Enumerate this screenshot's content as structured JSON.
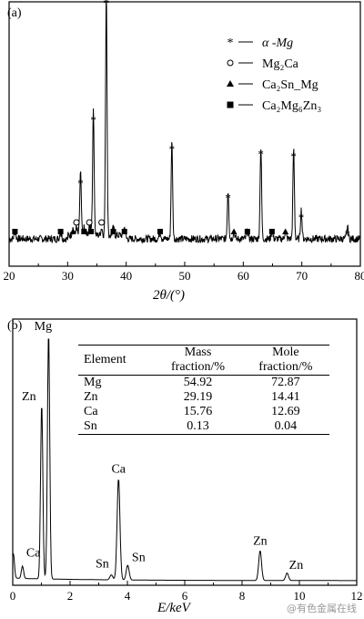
{
  "chart_data": [
    {
      "panel": "(a)",
      "type": "line",
      "xlabel": "2θ/(°)",
      "xlim": [
        20,
        80
      ],
      "xticks": [
        20,
        30,
        40,
        50,
        60,
        70,
        80
      ],
      "legend": [
        {
          "marker": "star",
          "symbol": "*",
          "label": "α -Mg"
        },
        {
          "marker": "circle",
          "symbol": "○",
          "label": "Mg₂Ca"
        },
        {
          "marker": "triangle",
          "symbol": "▲",
          "label": "Ca₂Sn_Mg"
        },
        {
          "marker": "square",
          "symbol": "■",
          "label": "Ca₂Mg₆Zn₃"
        }
      ],
      "peaks": [
        {
          "x": 32.2,
          "y": 0.26,
          "markers": [
            "star"
          ]
        },
        {
          "x": 34.4,
          "y": 0.52,
          "markers": [
            "star"
          ]
        },
        {
          "x": 36.6,
          "y": 1.0,
          "markers": [
            "star"
          ]
        },
        {
          "x": 47.8,
          "y": 0.4,
          "markers": [
            "star"
          ]
        },
        {
          "x": 57.4,
          "y": 0.2,
          "markers": [
            "star"
          ]
        },
        {
          "x": 63.0,
          "y": 0.38,
          "markers": [
            "star"
          ]
        },
        {
          "x": 68.6,
          "y": 0.37,
          "markers": [
            "star"
          ]
        },
        {
          "x": 69.9,
          "y": 0.12,
          "markers": [
            "star"
          ]
        },
        {
          "x": 77.8,
          "y": 0.05,
          "markers": [
            "star"
          ]
        }
      ],
      "minor_markers": [
        {
          "x": 21.0,
          "marker": "square"
        },
        {
          "x": 28.8,
          "marker": "square"
        },
        {
          "x": 30.9,
          "marker": "triangle"
        },
        {
          "x": 31.5,
          "marker": "circle"
        },
        {
          "x": 32.8,
          "marker": "square"
        },
        {
          "x": 33.7,
          "marker": "circle"
        },
        {
          "x": 34.0,
          "marker": "square"
        },
        {
          "x": 35.8,
          "marker": "circle"
        },
        {
          "x": 37.8,
          "marker": "square"
        },
        {
          "x": 39.7,
          "marker": "square"
        },
        {
          "x": 45.8,
          "marker": "square"
        },
        {
          "x": 58.4,
          "marker": "triangle"
        },
        {
          "x": 60.7,
          "marker": "square"
        },
        {
          "x": 64.9,
          "marker": "square"
        },
        {
          "x": 67.2,
          "marker": "triangle"
        }
      ]
    },
    {
      "panel": "(b)",
      "type": "line",
      "xlabel": "E/keV",
      "xlim": [
        0,
        12
      ],
      "xticks": [
        0,
        2,
        4,
        6,
        8,
        10,
        12
      ],
      "peaks": [
        {
          "x": 0.02,
          "y": 0.1
        },
        {
          "x": 0.34,
          "y": 0.05,
          "label": "Ca"
        },
        {
          "x": 1.01,
          "y": 0.71,
          "label": "Zn"
        },
        {
          "x": 1.25,
          "y": 1.0,
          "label": "Mg"
        },
        {
          "x": 3.69,
          "y": 0.41,
          "label": "Ca"
        },
        {
          "x": 3.44,
          "y": 0.02,
          "label": "Sn"
        },
        {
          "x": 4.01,
          "y": 0.06,
          "label": "Sn"
        },
        {
          "x": 8.63,
          "y": 0.12,
          "label": "Zn"
        },
        {
          "x": 9.57,
          "y": 0.03,
          "label": "Zn"
        }
      ],
      "table": {
        "headers": {
          "element": "Element",
          "mass_line1": "Mass",
          "mass_line2": "fraction/%",
          "mole_line1": "Mole",
          "mole_line2": "fraction/%"
        },
        "rows": [
          {
            "element": "Mg",
            "mass": "54.92",
            "mole": "72.87"
          },
          {
            "element": "Zn",
            "mass": "29.19",
            "mole": "14.41"
          },
          {
            "element": "Ca",
            "mass": "15.76",
            "mole": "12.69"
          },
          {
            "element": "Sn",
            "mass": "0.13",
            "mole": "0.04"
          }
        ]
      }
    }
  ],
  "watermark": "@有色金属在线"
}
